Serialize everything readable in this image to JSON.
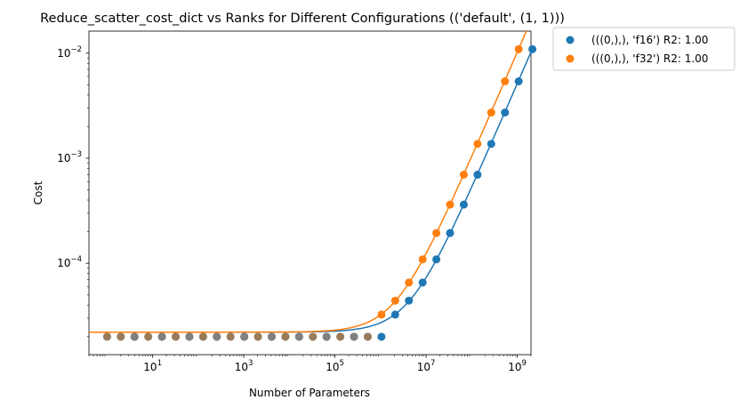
{
  "chart_data": {
    "type": "scatter",
    "title": "Reduce_scatter_cost_dict vs Ranks for Different Configurations (('default', (1, 1)))",
    "xlabel": "Number of Parameters",
    "ylabel": "Cost",
    "xscale": "log",
    "yscale": "log",
    "xlim": [
      0.4,
      2000000000
    ],
    "ylim": [
      1.35e-05,
      0.0162
    ],
    "grid": false,
    "legend_position": "outside-top-right",
    "x_ticks": [
      {
        "value": 10,
        "label": "10^1"
      },
      {
        "value": 1000,
        "label": "10^3"
      },
      {
        "value": 100000,
        "label": "10^5"
      },
      {
        "value": 10000000,
        "label": "10^7"
      },
      {
        "value": 1000000000,
        "label": "10^9"
      }
    ],
    "y_ticks": [
      {
        "value": 0.0001,
        "label": "10^-4"
      },
      {
        "value": 0.001,
        "label": "10^-3"
      },
      {
        "value": 0.01,
        "label": "10^-2"
      }
    ],
    "colors": {
      "f16": "#1f77b4",
      "f32": "#ff7f0e",
      "overlap": "#808080"
    },
    "series": [
      {
        "name": "(((0,),), 'f16') R2: 1.00",
        "color": "#1f77b4",
        "fit_floor": 2.21e-05,
        "fit_slope": 5.11e-12,
        "points": [
          [
            1,
            2e-05
          ],
          [
            2,
            2e-05
          ],
          [
            4,
            2e-05
          ],
          [
            8,
            2e-05
          ],
          [
            16,
            2e-05
          ],
          [
            32,
            2e-05
          ],
          [
            64,
            2e-05
          ],
          [
            128,
            2e-05
          ],
          [
            256,
            2e-05
          ],
          [
            512,
            2e-05
          ],
          [
            1024,
            2e-05
          ],
          [
            2048,
            2e-05
          ],
          [
            4096,
            2e-05
          ],
          [
            8192,
            2e-05
          ],
          [
            16384,
            2e-05
          ],
          [
            32768,
            2e-05
          ],
          [
            65536,
            2e-05
          ],
          [
            131072,
            2e-05
          ],
          [
            262144,
            2e-05
          ],
          [
            524288,
            2e-05
          ],
          [
            1048576,
            2e-05
          ],
          [
            2097152,
            3.25e-05
          ],
          [
            4194304,
            4.41e-05
          ],
          [
            8388608,
            6.56e-05
          ],
          [
            16777216,
            0.000109
          ],
          [
            33554432,
            0.000194
          ],
          [
            67108864,
            0.000362
          ],
          [
            134217728,
            0.000697
          ],
          [
            268435456,
            0.00137
          ],
          [
            536870912,
            0.00272
          ],
          [
            1073741824,
            0.00539
          ],
          [
            2147483648,
            0.0109
          ]
        ]
      },
      {
        "name": "(((0,),), 'f32') R2: 1.00",
        "color": "#ff7f0e",
        "fit_floor": 2.21e-05,
        "fit_slope": 1.02e-11,
        "points": [
          [
            1,
            2e-05
          ],
          [
            2,
            2e-05
          ],
          [
            4,
            2e-05
          ],
          [
            8,
            2e-05
          ],
          [
            16,
            2e-05
          ],
          [
            32,
            2e-05
          ],
          [
            64,
            2e-05
          ],
          [
            128,
            2e-05
          ],
          [
            256,
            2e-05
          ],
          [
            512,
            2e-05
          ],
          [
            1024,
            2e-05
          ],
          [
            2048,
            2e-05
          ],
          [
            4096,
            2e-05
          ],
          [
            8192,
            2e-05
          ],
          [
            16384,
            2e-05
          ],
          [
            32768,
            2e-05
          ],
          [
            65536,
            2e-05
          ],
          [
            131072,
            2e-05
          ],
          [
            262144,
            2e-05
          ],
          [
            524288,
            2e-05
          ],
          [
            1048576,
            3.25e-05
          ],
          [
            2097152,
            4.41e-05
          ],
          [
            4194304,
            6.56e-05
          ],
          [
            8388608,
            0.000109
          ],
          [
            16777216,
            0.000194
          ],
          [
            33554432,
            0.000362
          ],
          [
            67108864,
            0.000697
          ],
          [
            134217728,
            0.00137
          ],
          [
            268435456,
            0.00272
          ],
          [
            536870912,
            0.00539
          ],
          [
            1073741824,
            0.0109
          ]
        ]
      }
    ]
  }
}
